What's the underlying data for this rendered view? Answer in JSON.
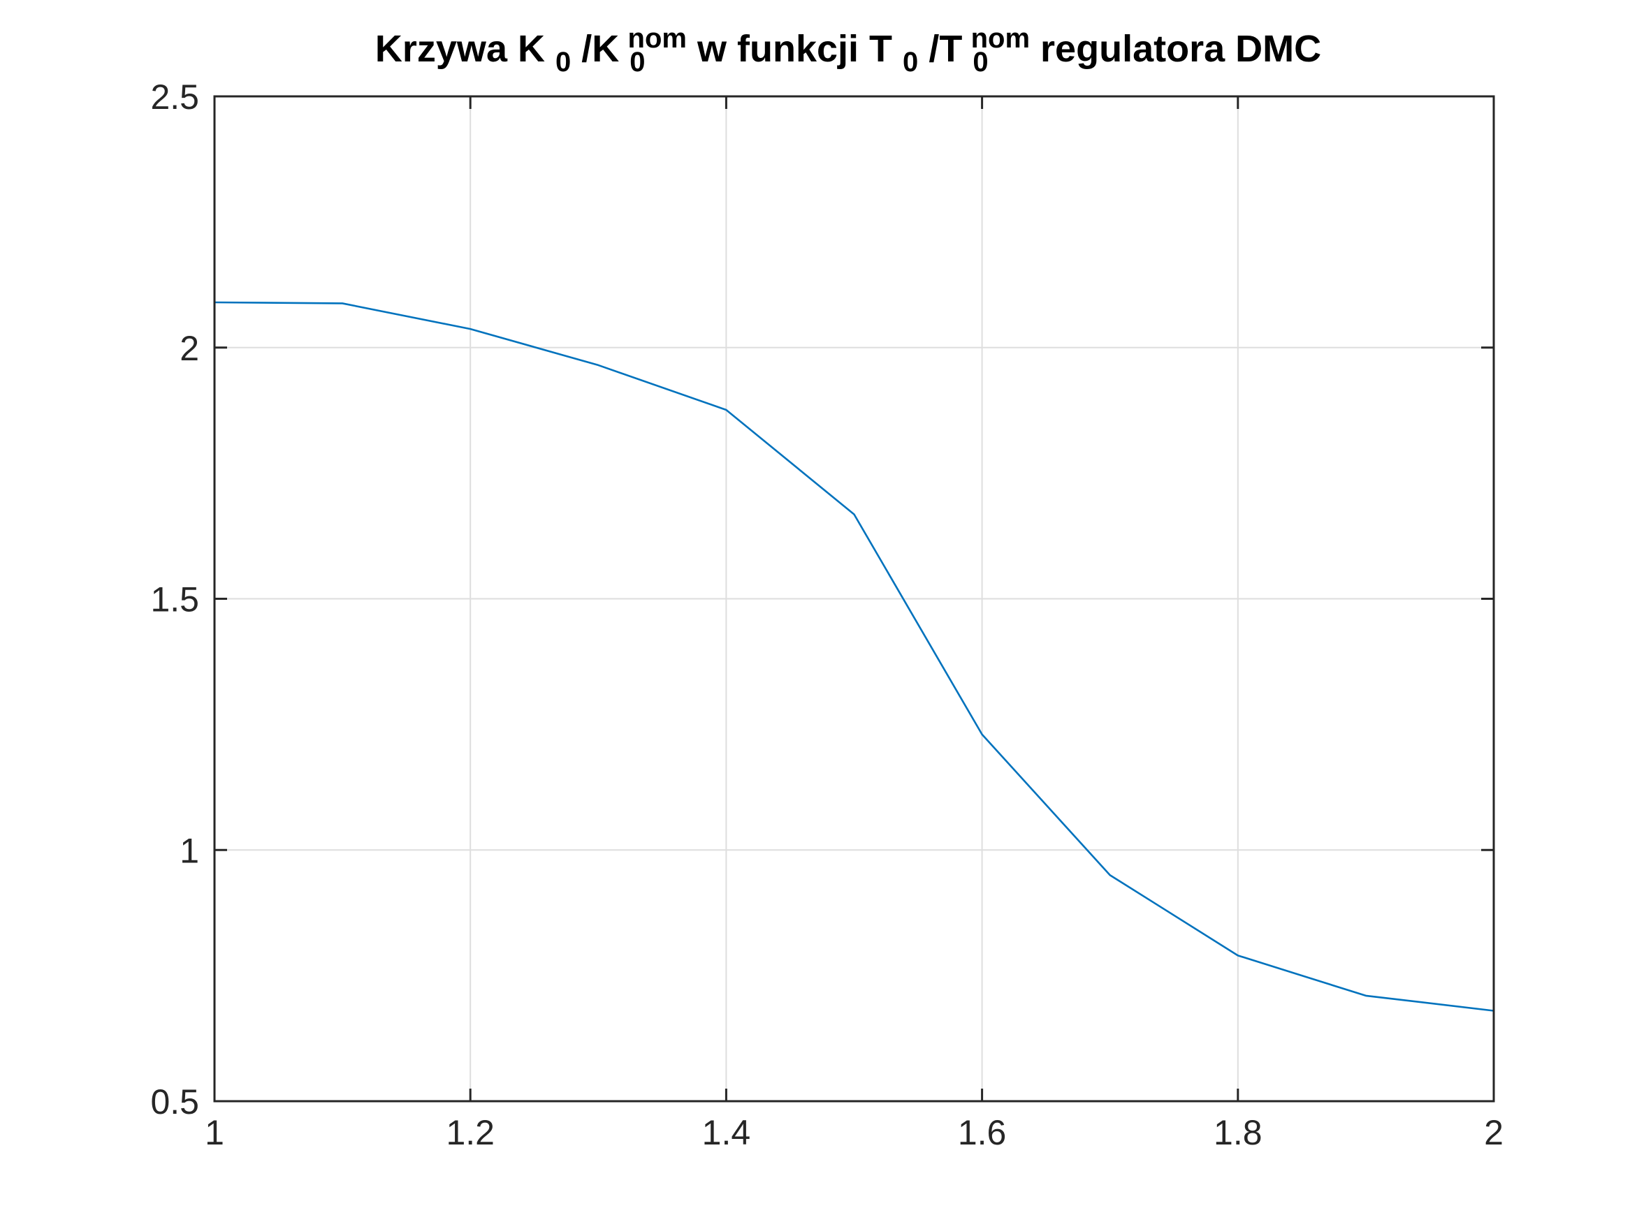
{
  "chart_data": {
    "type": "line",
    "title": {
      "p1": "Krzywa K",
      "s1": "0",
      "p2": "/K",
      "sub2": "0",
      "sup2": "nom",
      "p3": " w funkcji T",
      "s3": "0",
      "p4": "/T",
      "sub4": "0",
      "sup4": "nom",
      "p5": " regulatora DMC"
    },
    "xlabel": "",
    "ylabel": "",
    "xlim": [
      1,
      2
    ],
    "ylim": [
      0.5,
      2.5
    ],
    "x_ticks": [
      "1",
      "1.2",
      "1.4",
      "1.6",
      "1.8",
      "2"
    ],
    "y_ticks": [
      "0.5",
      "1",
      "1.5",
      "2",
      "2.5"
    ],
    "grid": true,
    "line_color": "#0072BD",
    "series": [
      {
        "x": [
          1.0,
          1.1,
          1.2,
          1.3,
          1.4,
          1.5,
          1.6,
          1.7,
          1.8,
          1.9,
          2.0
        ],
        "y": [
          2.09,
          2.088,
          2.037,
          1.965,
          1.876,
          1.668,
          1.23,
          0.95,
          0.79,
          0.71,
          0.68
        ]
      }
    ]
  }
}
